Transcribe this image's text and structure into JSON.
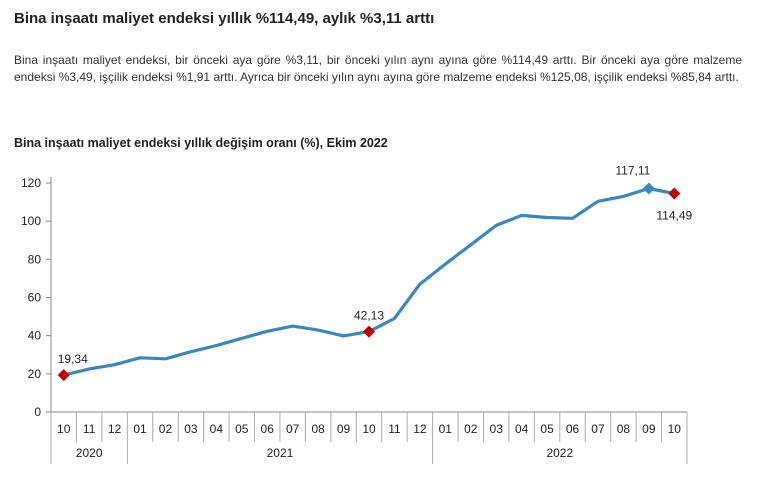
{
  "headline": "Bina inşaatı maliyet endeksi yıllık %114,49, aylık %3,11 arttı",
  "paragraph": "Bina inşaatı maliyet endeksi, bir önceki aya göre %3,11, bir önceki yılın aynı ayına göre %114,49 arttı. Bir önceki aya göre malzeme endeksi %3,49, işçilik endeksi %1,91 arttı. Ayrıca bir önceki yılın aynı ayına göre malzeme endeksi %125,08, işçilik endeksi %85,84 arttı.",
  "chart_data": {
    "type": "line",
    "title": "Bina inşaatı maliyet endeksi yıllık değişim oranı (%), Ekim 2022",
    "xlabel": "",
    "ylabel": "",
    "ylim": [
      0,
      120
    ],
    "yticks": [
      "0",
      "20",
      "40",
      "60",
      "80",
      "100",
      "120"
    ],
    "grid": false,
    "categories": [
      "10",
      "11",
      "12",
      "01",
      "02",
      "03",
      "04",
      "05",
      "06",
      "07",
      "08",
      "09",
      "10",
      "11",
      "12",
      "01",
      "02",
      "03",
      "04",
      "05",
      "06",
      "07",
      "08",
      "09",
      "10"
    ],
    "years": [
      {
        "label": "2020",
        "start": 0,
        "end": 2
      },
      {
        "label": "2021",
        "start": 3,
        "end": 14
      },
      {
        "label": "2022",
        "start": 15,
        "end": 24
      }
    ],
    "series": [
      {
        "values": [
          19.34,
          22.6,
          24.8,
          28.4,
          27.9,
          31.6,
          34.8,
          38.6,
          42.3,
          45.0,
          42.9,
          39.9,
          42.13,
          49.0,
          67.0,
          77.5,
          87.6,
          97.8,
          103.0,
          101.9,
          101.5,
          110.4,
          113.0,
          117.11,
          114.49
        ],
        "color": "#3a87c2"
      }
    ],
    "markers": [
      {
        "index": 0,
        "label": "19,34",
        "shape": "diamond",
        "color": "#c00000"
      },
      {
        "index": 12,
        "label": "42,13",
        "shape": "diamond",
        "color": "#c00000"
      },
      {
        "index": 23,
        "label": "117,11",
        "shape": "diamond",
        "color": "#3a87c2"
      },
      {
        "index": 24,
        "label": "114,49",
        "shape": "diamond",
        "color": "#c00000"
      }
    ]
  }
}
